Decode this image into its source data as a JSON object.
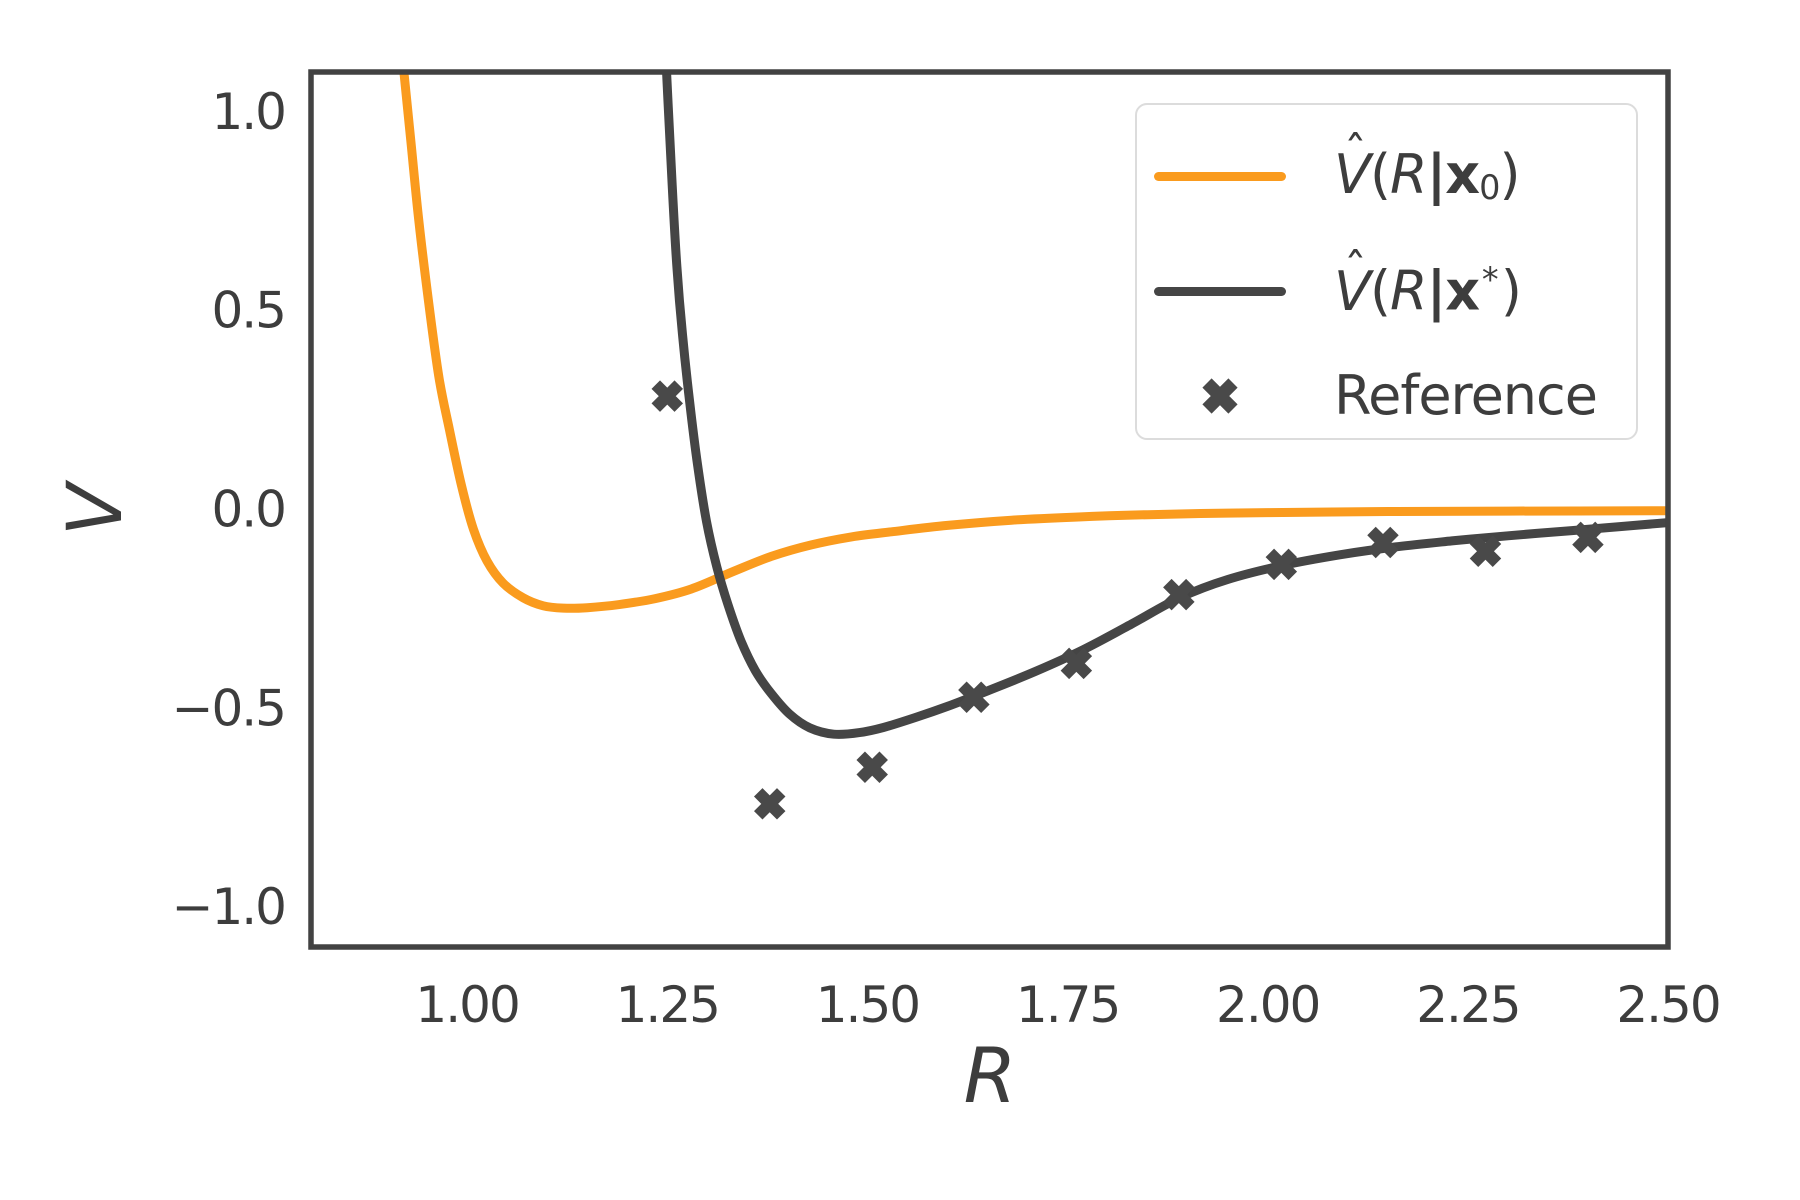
{
  "chart_data": {
    "type": "line",
    "title": "",
    "xlabel": "R",
    "ylabel": "V",
    "xlim": [
      0.805,
      2.5
    ],
    "ylim": [
      -1.1,
      1.1
    ],
    "grid": false,
    "legend_position": "upper right",
    "x_ticks": {
      "values": [
        1.0,
        1.25,
        1.5,
        1.75,
        2.0,
        2.25,
        2.5
      ],
      "labels": [
        "1.00",
        "1.25",
        "1.50",
        "1.75",
        "2.00",
        "2.25",
        "2.50"
      ]
    },
    "y_ticks": {
      "values": [
        1.0,
        0.5,
        0.0,
        -0.5,
        -1.0
      ],
      "labels": [
        "1.0",
        "0.5",
        "0.0",
        "−0.5",
        "−1.0"
      ]
    },
    "series": [
      {
        "name": "V_hat(R|x_0)",
        "type": "line",
        "color": "#fa9b1e",
        "points": [
          [
            0.905,
            1.45
          ],
          [
            0.912,
            1.25
          ],
          [
            0.921,
            1.1
          ],
          [
            0.93,
            0.92
          ],
          [
            0.94,
            0.72
          ],
          [
            0.952,
            0.52
          ],
          [
            0.965,
            0.33
          ],
          [
            0.978,
            0.2
          ],
          [
            0.993,
            0.06
          ],
          [
            1.008,
            -0.05
          ],
          [
            1.025,
            -0.13
          ],
          [
            1.045,
            -0.185
          ],
          [
            1.07,
            -0.222
          ],
          [
            1.095,
            -0.242
          ],
          [
            1.12,
            -0.248
          ],
          [
            1.15,
            -0.247
          ],
          [
            1.19,
            -0.239
          ],
          [
            1.235,
            -0.224
          ],
          [
            1.28,
            -0.2
          ],
          [
            1.33,
            -0.158
          ],
          [
            1.38,
            -0.118
          ],
          [
            1.43,
            -0.089
          ],
          [
            1.48,
            -0.069
          ],
          [
            1.53,
            -0.056
          ],
          [
            1.6,
            -0.04
          ],
          [
            1.68,
            -0.027
          ],
          [
            1.76,
            -0.019
          ],
          [
            1.85,
            -0.013
          ],
          [
            1.95,
            -0.009
          ],
          [
            2.05,
            -0.007
          ],
          [
            2.15,
            -0.005
          ],
          [
            2.3,
            -0.004
          ],
          [
            2.5,
            -0.003
          ]
        ]
      },
      {
        "name": "V_hat(R|x_star)",
        "type": "line",
        "color": "#454545",
        "points": [
          [
            1.243,
            1.45
          ],
          [
            1.247,
            1.2
          ],
          [
            1.251,
            1.02
          ],
          [
            1.256,
            0.82
          ],
          [
            1.262,
            0.61
          ],
          [
            1.269,
            0.44
          ],
          [
            1.278,
            0.27
          ],
          [
            1.288,
            0.11
          ],
          [
            1.299,
            -0.03
          ],
          [
            1.312,
            -0.145
          ],
          [
            1.326,
            -0.24
          ],
          [
            1.342,
            -0.33
          ],
          [
            1.36,
            -0.405
          ],
          [
            1.38,
            -0.463
          ],
          [
            1.403,
            -0.515
          ],
          [
            1.428,
            -0.549
          ],
          [
            1.458,
            -0.565
          ],
          [
            1.49,
            -0.561
          ],
          [
            1.52,
            -0.548
          ],
          [
            1.56,
            -0.523
          ],
          [
            1.6,
            -0.495
          ],
          [
            1.65,
            -0.456
          ],
          [
            1.71,
            -0.407
          ],
          [
            1.77,
            -0.352
          ],
          [
            1.83,
            -0.288
          ],
          [
            1.89,
            -0.222
          ],
          [
            1.95,
            -0.176
          ],
          [
            2.02,
            -0.14
          ],
          [
            2.09,
            -0.114
          ],
          [
            2.16,
            -0.094
          ],
          [
            2.23,
            -0.079
          ],
          [
            2.3,
            -0.066
          ],
          [
            2.38,
            -0.053
          ],
          [
            2.44,
            -0.043
          ],
          [
            2.5,
            -0.033
          ]
        ]
      },
      {
        "name": "Reference",
        "type": "scatter",
        "marker": "X",
        "color": "#494949",
        "points": [
          [
            1.25,
            0.285
          ],
          [
            1.378,
            -0.74
          ],
          [
            1.506,
            -0.648
          ],
          [
            1.633,
            -0.472
          ],
          [
            1.761,
            -0.387
          ],
          [
            1.889,
            -0.214
          ],
          [
            2.017,
            -0.138
          ],
          [
            2.144,
            -0.083
          ],
          [
            2.272,
            -0.105
          ],
          [
            2.4,
            -0.07
          ]
        ]
      }
    ]
  },
  "legend": {
    "items": [
      {
        "sample": "line",
        "color": "#fa9b1e",
        "tokens": [
          {
            "s": "V",
            "style": "italic",
            "hat": "ˆ"
          },
          {
            "s": "(",
            "style": "plain"
          },
          {
            "s": "R",
            "style": "italic"
          },
          {
            "s": "|",
            "style": "bold"
          },
          {
            "s": "x",
            "style": "bold"
          },
          {
            "s": "0",
            "style": "plain",
            "pos": "sub"
          },
          {
            "s": ")",
            "style": "plain"
          }
        ]
      },
      {
        "sample": "line",
        "color": "#454545",
        "tokens": [
          {
            "s": "V",
            "style": "italic",
            "hat": "ˆ"
          },
          {
            "s": "(",
            "style": "plain"
          },
          {
            "s": "R",
            "style": "italic"
          },
          {
            "s": "|",
            "style": "bold"
          },
          {
            "s": "x",
            "style": "bold"
          },
          {
            "s": "*",
            "style": "plain",
            "pos": "sup"
          },
          {
            "s": ")",
            "style": "plain"
          }
        ]
      },
      {
        "sample": "marker",
        "color": "#494949",
        "tokens": [
          {
            "s": "Reference",
            "style": "plain"
          }
        ]
      }
    ]
  },
  "colors": {
    "frame": "#424242",
    "text": "#3d3d3d",
    "legend_border": "#dcdcdc",
    "background": "#ffffff"
  }
}
